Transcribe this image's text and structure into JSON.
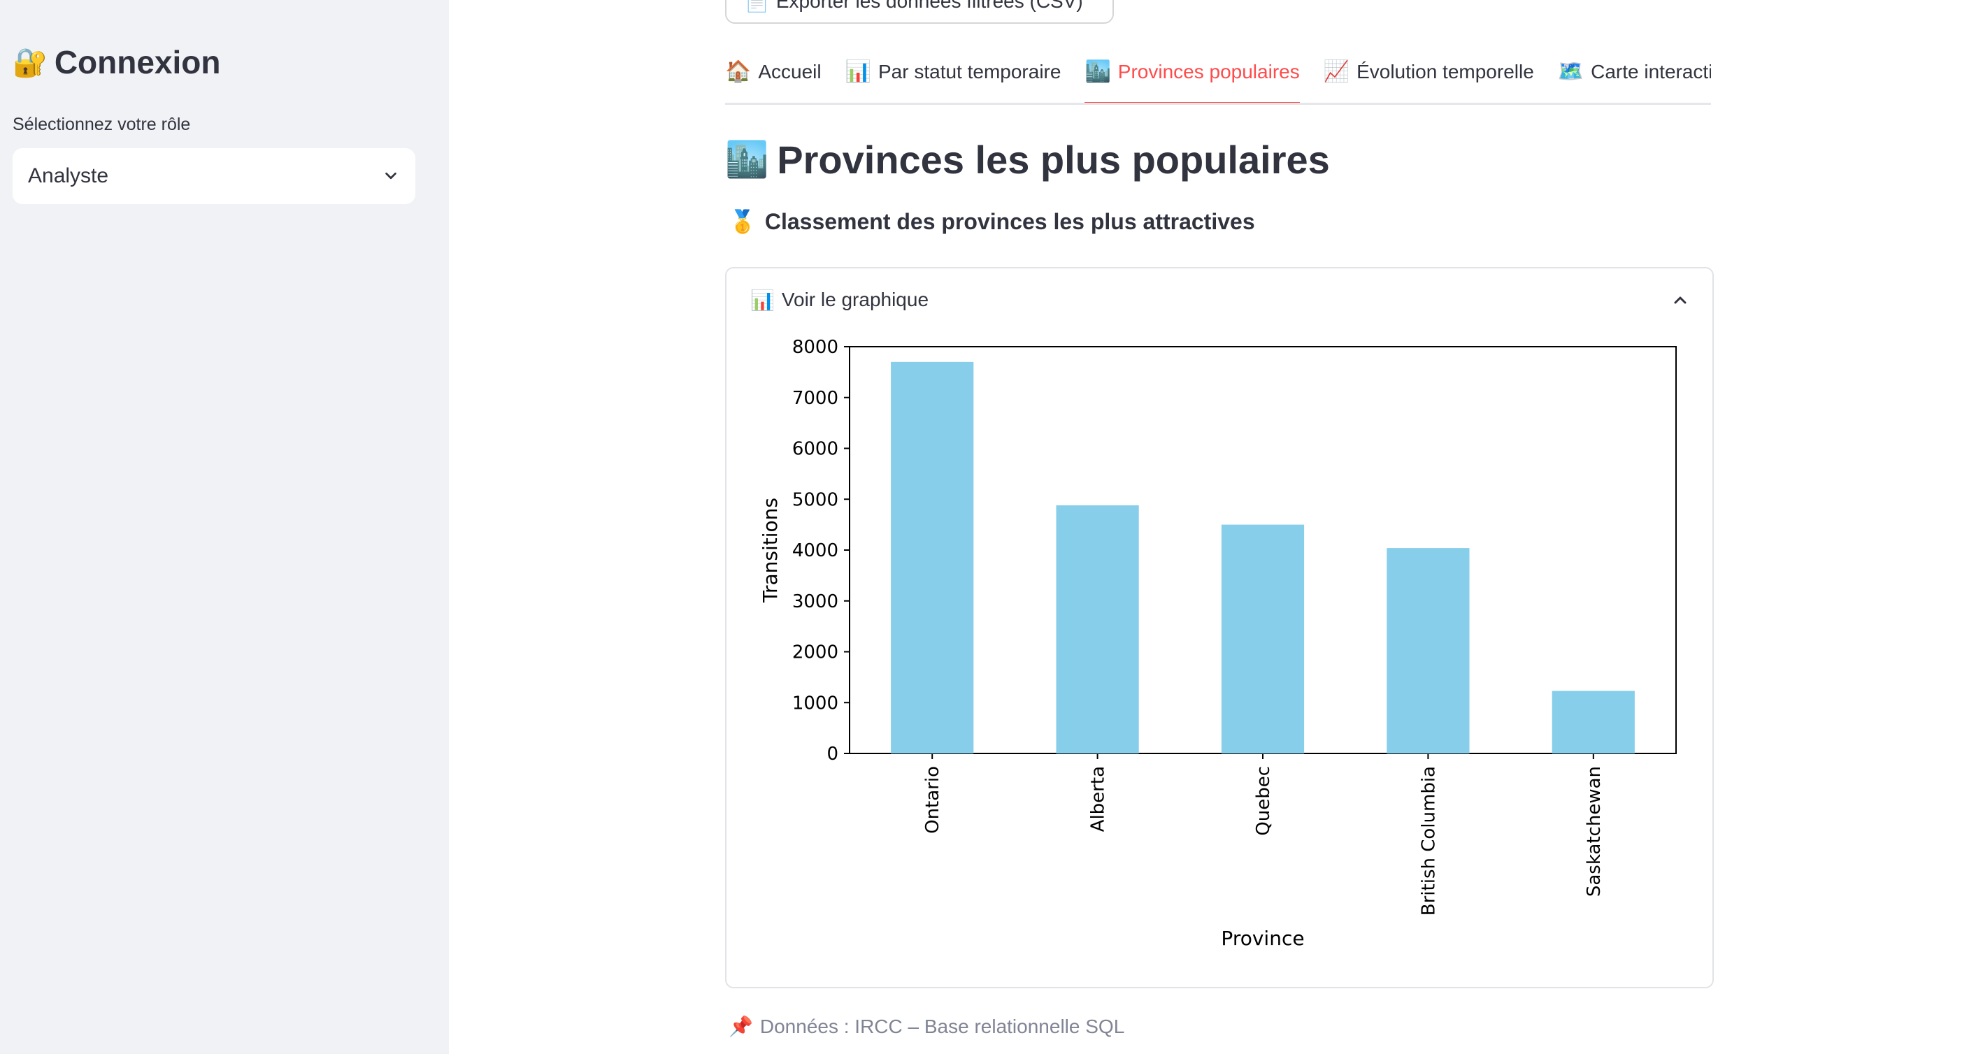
{
  "sidebar": {
    "title_icon": "🔐",
    "title": "Connexion",
    "role_label": "Sélectionnez votre rôle",
    "role_value": "Analyste"
  },
  "export_button": {
    "icon": "📄",
    "label": "Exporter les données filtrées (CSV)"
  },
  "tabs": [
    {
      "icon": "🏠",
      "label": "Accueil",
      "active": false
    },
    {
      "icon": "📊",
      "label": "Par statut temporaire",
      "active": false
    },
    {
      "icon": "🏙️",
      "label": "Provinces populaires",
      "active": true
    },
    {
      "icon": "📈",
      "label": "Évolution temporelle",
      "active": false
    },
    {
      "icon": "🗺️",
      "label": "Carte interactive",
      "active": false
    },
    {
      "icon": "📄",
      "label": "",
      "active": false
    }
  ],
  "page": {
    "title_icon": "🏙️",
    "title": "Provinces les plus populaires",
    "subtitle_icon": "🥇",
    "subtitle": "Classement des provinces les plus attractives"
  },
  "expander": {
    "icon": "📊",
    "label": "Voir le graphique"
  },
  "chart_data": {
    "type": "bar",
    "categories": [
      "Ontario",
      "Alberta",
      "Quebec",
      "British Columbia",
      "Saskatchewan"
    ],
    "values": [
      7700,
      4880,
      4500,
      4040,
      1230
    ],
    "xlabel": "Province",
    "ylabel": "Transitions",
    "ylim": [
      0,
      8000
    ],
    "yticks": [
      0,
      1000,
      2000,
      3000,
      4000,
      5000,
      6000,
      7000,
      8000
    ],
    "bar_color": "#87ceeb",
    "grid": false
  },
  "footer": {
    "icon": "📌",
    "text": "Données : IRCC – Base relationnelle SQL"
  },
  "colors": {
    "accent": "#ff4b4b",
    "sidebar_bg": "#f0f2f6",
    "muted_text": "#808495"
  }
}
